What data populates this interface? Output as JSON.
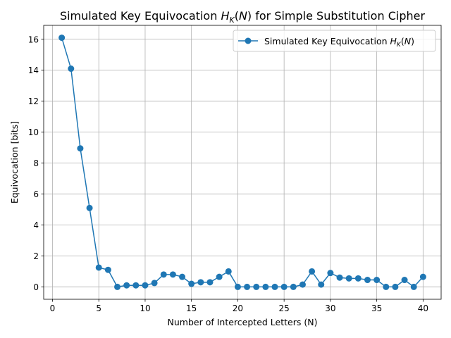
{
  "chart_data": {
    "type": "line",
    "title": "Simulated Key Equivocation H_K(N) for Simple Substitution Cipher",
    "xlabel": "Number of Intercepted Letters (N)",
    "ylabel": "Equivocation [bits]",
    "xlim": [
      -0.95,
      41.95
    ],
    "ylim": [
      -0.8,
      16.9
    ],
    "xticks": [
      0,
      5,
      10,
      15,
      20,
      25,
      30,
      35,
      40
    ],
    "yticks": [
      0,
      2,
      4,
      6,
      8,
      10,
      12,
      14,
      16
    ],
    "grid": true,
    "legend_position": "top-right",
    "series": [
      {
        "name": "Simulated Key Equivocation H_K(N)",
        "color": "#1f77b4",
        "marker": "circle",
        "x": [
          1,
          2,
          3,
          4,
          5,
          6,
          7,
          8,
          9,
          10,
          11,
          12,
          13,
          14,
          15,
          16,
          17,
          18,
          19,
          20,
          21,
          22,
          23,
          24,
          25,
          26,
          27,
          28,
          29,
          30,
          31,
          32,
          33,
          34,
          35,
          36,
          37,
          38,
          39,
          40
        ],
        "y": [
          16.1,
          14.1,
          8.95,
          5.1,
          1.25,
          1.1,
          0.0,
          0.1,
          0.1,
          0.1,
          0.25,
          0.8,
          0.8,
          0.65,
          0.2,
          0.3,
          0.3,
          0.65,
          1.0,
          0.0,
          0.0,
          0.0,
          0.0,
          0.0,
          0.0,
          0.0,
          0.15,
          1.0,
          0.15,
          0.9,
          0.6,
          0.55,
          0.55,
          0.45,
          0.45,
          0.0,
          0.0,
          0.45,
          0.0,
          0.65
        ]
      }
    ]
  }
}
